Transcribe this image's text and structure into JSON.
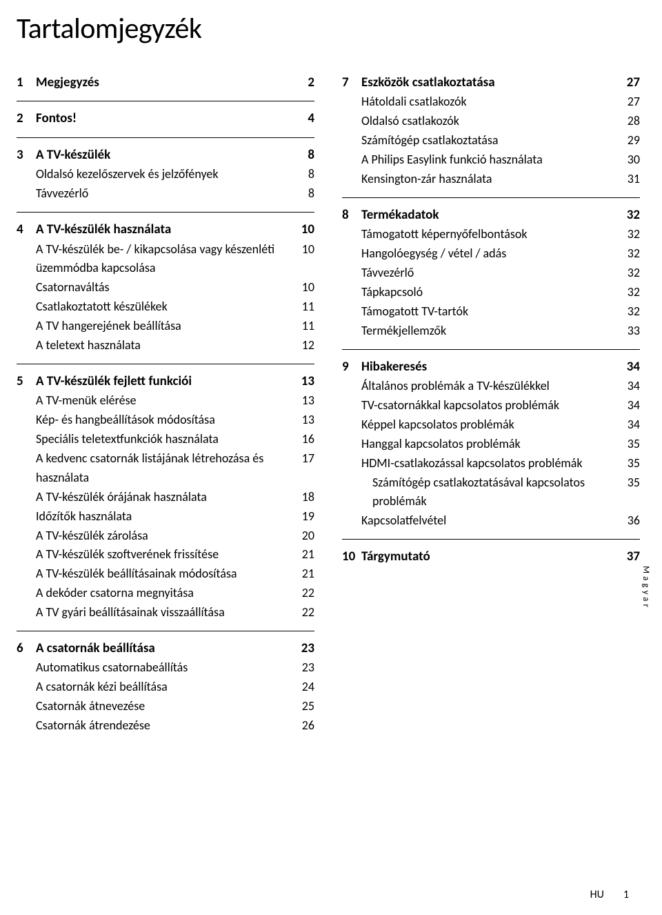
{
  "title": "Tartalomjegyzék",
  "vlabel": "Magyar",
  "footer_hu": "HU",
  "footer_num": "1",
  "left": [
    {
      "type": "section",
      "rows": [
        {
          "num": "1",
          "label": "Megjegyzés",
          "page": "2",
          "heading": true
        }
      ]
    },
    {
      "type": "section",
      "rows": [
        {
          "num": "2",
          "label": "Fontos!",
          "page": "4",
          "heading": true
        }
      ]
    },
    {
      "type": "section",
      "rows": [
        {
          "num": "3",
          "label": "A TV-készülék",
          "page": "8",
          "heading": true
        },
        {
          "label": "Oldalsó kezelőszervek és jelzőfények",
          "page": "8"
        },
        {
          "label": "Távvezérlő",
          "page": "8"
        }
      ]
    },
    {
      "type": "section",
      "rows": [
        {
          "num": "4",
          "label": "A TV-készülék használata",
          "page": "10",
          "heading": true
        },
        {
          "label": "A TV-készülék be- / kikapcsolása vagy készenléti üzemmódba kapcsolása",
          "page": "10"
        },
        {
          "label": "Csatornaváltás",
          "page": "10"
        },
        {
          "label": "Csatlakoztatott készülékek",
          "page": "11"
        },
        {
          "label": "A TV hangerejének beállítása",
          "page": "11"
        },
        {
          "label": "A teletext használata",
          "page": "12"
        }
      ]
    },
    {
      "type": "section",
      "rows": [
        {
          "num": "5",
          "label": "A TV-készülék fejlett funkciói",
          "page": "13",
          "heading": true
        },
        {
          "label": "A TV-menük elérése",
          "page": "13"
        },
        {
          "label": "Kép- és hangbeállítások módosítása",
          "page": "13"
        },
        {
          "label": "Speciális teletextfunkciók használata",
          "page": "16"
        },
        {
          "label": "A kedvenc csatornák listájának létrehozása és használata",
          "page": "17"
        },
        {
          "label": "A TV-készülék órájának használata",
          "page": "18"
        },
        {
          "label": "Időzítők használata",
          "page": "19"
        },
        {
          "label": "A TV-készülék zárolása",
          "page": "20"
        },
        {
          "label": "A TV-készülék szoftverének frissítése",
          "page": "21"
        },
        {
          "label": "A TV-készülék beállításainak módosítása",
          "page": "21"
        },
        {
          "label": "A dekóder csatorna megnyitása",
          "page": "22"
        },
        {
          "label": "A TV gyári beállításainak visszaállítása",
          "page": "22"
        }
      ]
    },
    {
      "type": "section",
      "rows": [
        {
          "num": "6",
          "label": "A csatornák beállítása",
          "page": "23",
          "heading": true
        },
        {
          "label": "Automatikus csatornabeállítás",
          "page": "23"
        },
        {
          "label": "A csatornák kézi beállítása",
          "page": "24"
        },
        {
          "label": "Csatornák átnevezése",
          "page": "25"
        },
        {
          "label": "Csatornák átrendezése",
          "page": "26"
        }
      ]
    }
  ],
  "right": [
    {
      "type": "section",
      "notop": true,
      "rows": [
        {
          "num": "7",
          "label": "Eszközök csatlakoztatása",
          "page": "27",
          "heading": true
        },
        {
          "label": "Hátoldali csatlakozók",
          "page": "27"
        },
        {
          "label": "Oldalsó csatlakozók",
          "page": "28"
        },
        {
          "label": "Számítógép csatlakoztatása",
          "page": "29"
        },
        {
          "label": "A Philips Easylink funkció használata",
          "page": "30"
        },
        {
          "label": "Kensington-zár használata",
          "page": "31"
        }
      ]
    },
    {
      "type": "section",
      "rows": [
        {
          "num": "8",
          "label": "Termékadatok",
          "page": "32",
          "heading": true
        },
        {
          "label": "Támogatott képernyőfelbontások",
          "page": "32"
        },
        {
          "label": "Hangolóegység / vétel / adás",
          "page": "32"
        },
        {
          "label": "Távvezérlő",
          "page": "32"
        },
        {
          "label": "Tápkapcsoló",
          "page": "32"
        },
        {
          "label": "Támogatott TV-tartók",
          "page": "32"
        },
        {
          "label": "Termékjellemzők",
          "page": "33"
        }
      ]
    },
    {
      "type": "section",
      "rows": [
        {
          "num": "9",
          "label": "Hibakeresés",
          "page": "34",
          "heading": true
        },
        {
          "label": "Általános problémák a TV-készülékkel",
          "page": "34"
        },
        {
          "label": "TV-csatornákkal kapcsolatos problémák",
          "page": "34"
        },
        {
          "label": "Képpel kapcsolatos problémák",
          "page": "34"
        },
        {
          "label": "Hanggal kapcsolatos problémák",
          "page": "35"
        },
        {
          "label": "HDMI-csatlakozással kapcsolatos problémák",
          "page": "35"
        },
        {
          "label": "Számítógép csatlakoztatásával kapcsolatos problémák",
          "page": "35",
          "indent": true
        },
        {
          "label": "Kapcsolatfelvétel",
          "page": "36"
        }
      ]
    },
    {
      "type": "section",
      "rows": [
        {
          "num": "10",
          "label": "Tárgymutató",
          "page": "37",
          "heading": true
        }
      ]
    }
  ]
}
